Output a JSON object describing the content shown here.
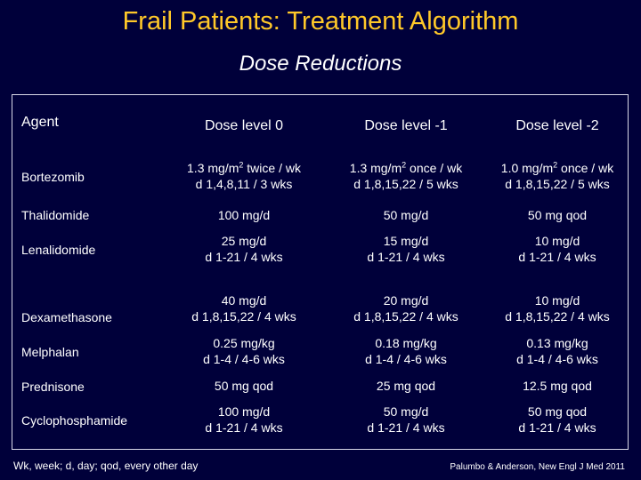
{
  "title": "Frail Patients: Treatment Algorithm",
  "subtitle": "Dose Reductions",
  "table": {
    "headers": [
      "Agent",
      "Dose level 0",
      "Dose level -1",
      "Dose level -2"
    ],
    "rows": [
      {
        "agent": "Bortezomib",
        "d0": [
          "1.3 mg/m² twice / wk",
          "d 1,4,8,11 / 3 wks"
        ],
        "d1": [
          "1.3 mg/m² once / wk",
          "d 1,8,15,22 / 5 wks"
        ],
        "d2": [
          "1.0 mg/m² once / wk",
          "d 1,8,15,22 / 5 wks"
        ]
      },
      {
        "agent": "Thalidomide",
        "d0": [
          "100 mg/d"
        ],
        "d1": [
          "50 mg/d"
        ],
        "d2": [
          "50 mg qod"
        ]
      },
      {
        "agent": "Lenalidomide",
        "d0": [
          "25 mg/d",
          "d 1-21 / 4 wks"
        ],
        "d1": [
          "15 mg/d",
          "d 1-21 / 4 wks"
        ],
        "d2": [
          "10 mg/d",
          "d 1-21 / 4 wks"
        ]
      },
      {
        "agent": "Dexamethasone",
        "d0": [
          "40 mg/d",
          "d 1,8,15,22 / 4 wks"
        ],
        "d1": [
          "20 mg/d",
          "d 1,8,15,22 / 4 wks"
        ],
        "d2": [
          "10 mg/d",
          "d 1,8,15,22 / 4 wks"
        ]
      },
      {
        "agent": "Melphalan",
        "d0": [
          "0.25 mg/kg",
          "d 1-4 / 4-6 wks"
        ],
        "d1": [
          "0.18 mg/kg",
          "d 1-4 / 4-6 wks"
        ],
        "d2": [
          "0.13 mg/kg",
          "d 1-4 / 4-6 wks"
        ]
      },
      {
        "agent": "Prednisone",
        "d0": [
          "50 mg qod"
        ],
        "d1": [
          "25 mg qod"
        ],
        "d2": [
          "12.5 mg qod"
        ]
      },
      {
        "agent": "Cyclophosphamide",
        "d0": [
          "100 mg/d",
          "d 1-21 / 4 wks"
        ],
        "d1": [
          "50 mg/d",
          "d 1-21 / 4 wks"
        ],
        "d2": [
          "50 mg qod",
          "d 1-21 / 4 wks"
        ]
      }
    ]
  },
  "footnote": "Wk, week; d, day; qod, every other day",
  "citation": "Palumbo & Anderson, New Engl J Med 2011",
  "colors": {
    "background": "#00003a",
    "title": "#ffc829",
    "text": "#ffffff"
  }
}
